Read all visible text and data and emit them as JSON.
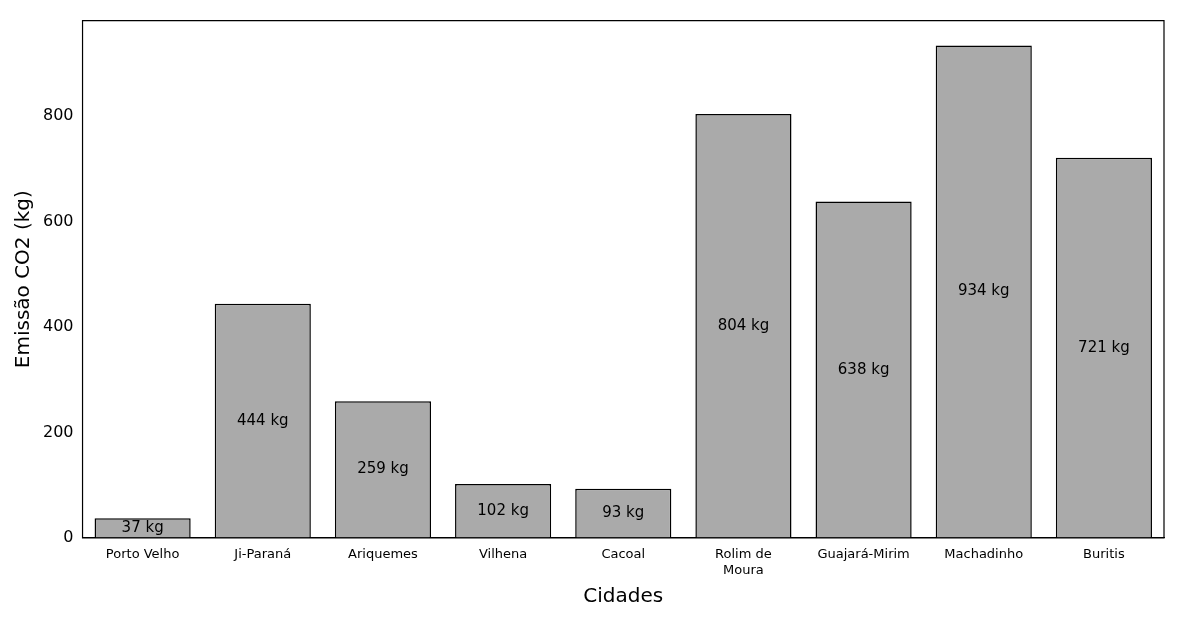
{
  "chart_data": {
    "type": "bar",
    "xlabel": "Cidades",
    "ylabel": "Emissão CO2 (kg)",
    "categories": [
      "Porto Velho",
      "Ji-Paraná",
      "Ariquemes",
      "Vilhena",
      "Cacoal",
      "Rolim de\nMoura",
      "Guajará-Mirim",
      "Machadinho",
      "Buritis"
    ],
    "values": [
      37,
      444,
      259,
      102,
      93,
      804,
      638,
      934,
      721
    ],
    "value_labels": [
      "37 kg",
      "444 kg",
      "259 kg",
      "102 kg",
      "93 kg",
      "804 kg",
      "638 kg",
      "934 kg",
      "721 kg"
    ],
    "color": "#aaaaaa",
    "ylim": [
      0,
      981
    ],
    "yticks": [
      0,
      200,
      400,
      600,
      800
    ],
    "grid": false,
    "legend": false
  }
}
